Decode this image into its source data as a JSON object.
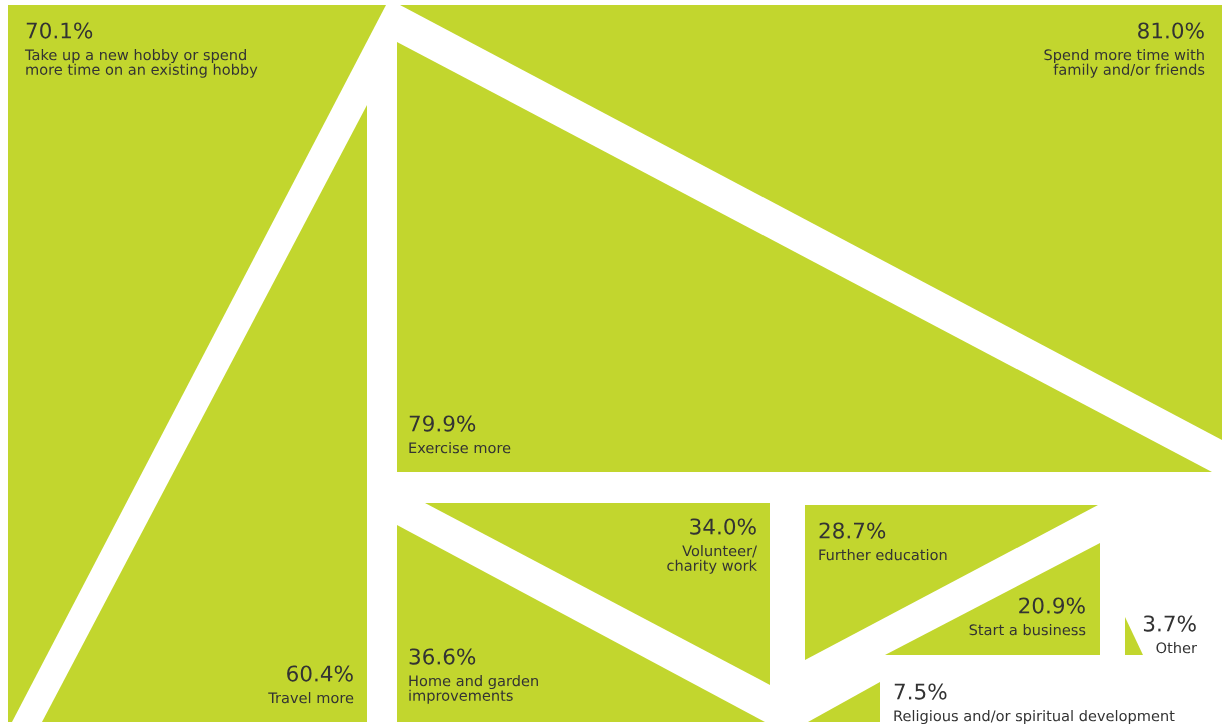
{
  "chart_data": {
    "type": "other",
    "categories": [
      "Take up a new hobby or spend\nmore time on an existing hobby",
      "Travel more",
      "Spend more time with\nfamily and/or friends",
      "Exercise more",
      "Volunteer/\ncharity work",
      "Home and garden\nimprovements",
      "Further education",
      "Start a business",
      "Religious and/or spiritual development",
      "Other"
    ],
    "values": [
      70.1,
      60.4,
      81.0,
      79.9,
      34.0,
      36.6,
      28.7,
      20.9,
      7.5,
      3.7
    ],
    "value_labels": [
      "70.1%",
      "60.4%",
      "81.0%",
      "79.9%",
      "34.0%",
      "36.6%",
      "28.7%",
      "20.9%",
      "7.5%",
      "3.7%"
    ],
    "color": "#c2d62e"
  }
}
